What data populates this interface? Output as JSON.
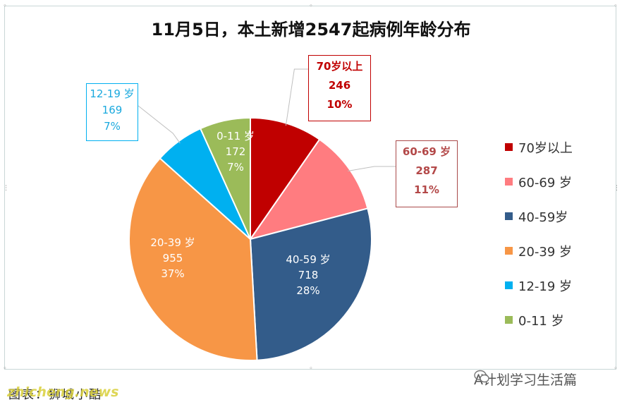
{
  "header": {
    "title": "11月5日，本土新增2547起病例年龄分布"
  },
  "chart_data": {
    "type": "pie",
    "title": "11月5日，本土新增2547起病例年龄分布",
    "slices": [
      {
        "label": "70岁以上",
        "legend": "70岁以上",
        "value": 246,
        "percent": "10%",
        "color": "#c00000"
      },
      {
        "label": "60-69 岁",
        "legend": "60-69 岁",
        "value": 287,
        "percent": "11%",
        "color": "#ff7c80"
      },
      {
        "label": "40-59 岁",
        "legend": "40-59岁",
        "value": 718,
        "percent": "28%",
        "color": "#335c8a"
      },
      {
        "label": "20-39 岁",
        "legend": "20-39 岁",
        "value": 955,
        "percent": "37%",
        "color": "#f79646"
      },
      {
        "label": "12-19 岁",
        "legend": "12-19 岁",
        "value": 169,
        "percent": "7%",
        "color": "#00b0f0"
      },
      {
        "label": "0-11 岁",
        "legend": "0-11 岁",
        "value": 172,
        "percent": "7%",
        "color": "#9bbb59"
      }
    ],
    "legend_position": "right"
  },
  "footer": {
    "caption": "图表：狮城小酷",
    "watermark": "zhicheng.news",
    "account": "A计划学习生活篇"
  },
  "icons": {
    "wechat": "wechat-icon"
  }
}
